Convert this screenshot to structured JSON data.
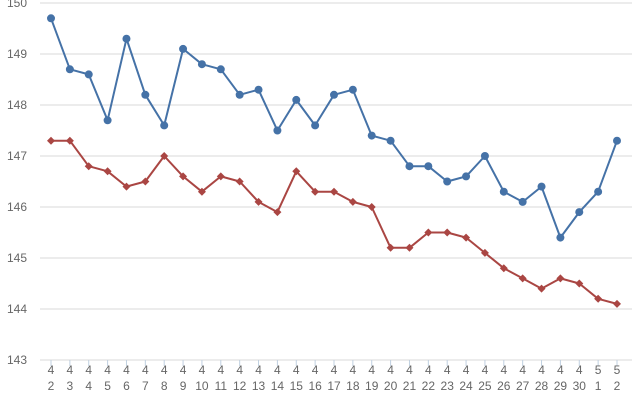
{
  "chart_data": {
    "type": "line",
    "title": "",
    "xlabel": "",
    "ylabel": "",
    "ylim": [
      143,
      150
    ],
    "yticks": [
      "143",
      "144",
      "145",
      "146",
      "147",
      "148",
      "149",
      "150"
    ],
    "grid": true,
    "categories": [
      {
        "top": "4",
        "bottom": "2"
      },
      {
        "top": "4",
        "bottom": "3"
      },
      {
        "top": "4",
        "bottom": "4"
      },
      {
        "top": "4",
        "bottom": "5"
      },
      {
        "top": "4",
        "bottom": "6"
      },
      {
        "top": "4",
        "bottom": "7"
      },
      {
        "top": "4",
        "bottom": "8"
      },
      {
        "top": "4",
        "bottom": "9"
      },
      {
        "top": "4",
        "bottom": "10"
      },
      {
        "top": "4",
        "bottom": "11"
      },
      {
        "top": "4",
        "bottom": "12"
      },
      {
        "top": "4",
        "bottom": "13"
      },
      {
        "top": "4",
        "bottom": "14"
      },
      {
        "top": "4",
        "bottom": "15"
      },
      {
        "top": "4",
        "bottom": "16"
      },
      {
        "top": "4",
        "bottom": "17"
      },
      {
        "top": "4",
        "bottom": "18"
      },
      {
        "top": "4",
        "bottom": "19"
      },
      {
        "top": "4",
        "bottom": "20"
      },
      {
        "top": "4",
        "bottom": "21"
      },
      {
        "top": "4",
        "bottom": "22"
      },
      {
        "top": "4",
        "bottom": "23"
      },
      {
        "top": "4",
        "bottom": "24"
      },
      {
        "top": "4",
        "bottom": "25"
      },
      {
        "top": "4",
        "bottom": "26"
      },
      {
        "top": "4",
        "bottom": "27"
      },
      {
        "top": "4",
        "bottom": "28"
      },
      {
        "top": "4",
        "bottom": "29"
      },
      {
        "top": "4",
        "bottom": "30"
      },
      {
        "top": "5",
        "bottom": "1"
      },
      {
        "top": "5",
        "bottom": "2"
      }
    ],
    "series": [
      {
        "color": "#4572A7",
        "marker": "circle",
        "values": [
          149.7,
          148.7,
          148.6,
          147.7,
          149.3,
          148.2,
          147.6,
          149.1,
          148.8,
          148.7,
          148.2,
          148.3,
          147.5,
          148.1,
          147.6,
          148.2,
          148.3,
          147.4,
          147.3,
          146.8,
          146.8,
          146.5,
          146.6,
          147.0,
          146.3,
          146.1,
          146.4,
          145.4,
          145.9,
          146.3,
          147.3
        ]
      },
      {
        "color": "#AA4643",
        "marker": "diamond",
        "values": [
          147.3,
          147.3,
          146.8,
          146.7,
          146.4,
          146.5,
          147.0,
          146.6,
          146.3,
          146.6,
          146.5,
          146.1,
          145.9,
          146.7,
          146.3,
          146.3,
          146.1,
          146.0,
          145.2,
          145.2,
          145.5,
          145.5,
          145.4,
          145.1,
          144.8,
          144.6,
          144.4,
          144.6,
          144.5,
          144.2,
          144.1
        ]
      }
    ]
  }
}
